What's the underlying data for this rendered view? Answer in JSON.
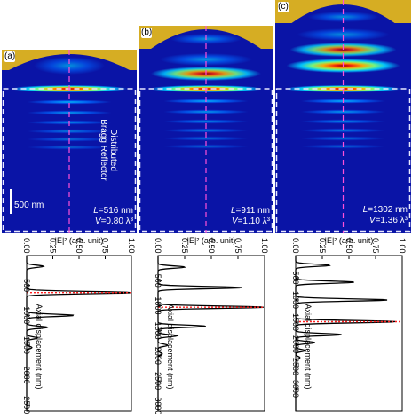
{
  "panels": [
    {
      "label": "(a)",
      "L_name": "L",
      "L_text": "=516 nm",
      "V_name": "V",
      "V_text": "=0.80 λ³",
      "dbr_line1": "Distributed",
      "dbr_line2": "Bragg Reflector",
      "scalebar_label": "500 nm",
      "colors": {
        "metal": "#d6ad23",
        "background": "#0a14a6",
        "dashed_box": "#e8e8ff",
        "axis_dash": "#ff4fd8"
      }
    },
    {
      "label": "(b)",
      "L_name": "L",
      "L_text": "=911 nm",
      "V_name": "V",
      "V_text": "=1.10 λ³"
    },
    {
      "label": "(c)",
      "L_name": "L",
      "L_text": "=1302 nm",
      "V_name": "V",
      "V_text": "=1.36 λ³"
    }
  ],
  "chart_data": [
    {
      "type": "line",
      "panel": "a",
      "ylabel": "|E|² (arb. unit)",
      "xlabel": "Axial displacement (nm)",
      "value_axis": {
        "range": [
          0,
          1.0
        ],
        "ticks": [
          "0.00",
          "0.25",
          "0.50",
          "0.75",
          "1.00"
        ]
      },
      "displacement_axis": {
        "range": [
          0,
          2600
        ],
        "ticks": [
          "500",
          "1000",
          "1500",
          "2000",
          "2500"
        ]
      },
      "marker_displacement": 620,
      "series": [
        {
          "peaks": [
            [
              180,
              0.16
            ],
            [
              620,
              1.0
            ],
            [
              1000,
              0.45
            ],
            [
              1200,
              0.2
            ],
            [
              1380,
              0.1
            ],
            [
              1540,
              0.05
            ]
          ]
        }
      ]
    },
    {
      "type": "line",
      "panel": "b",
      "ylabel": "|E|² (arb. unit)",
      "xlabel": "Axial displacement (nm)",
      "value_axis": {
        "range": [
          0,
          1.0
        ],
        "ticks": [
          "0.00",
          "0.25",
          "0.50",
          "0.75",
          "1.00"
        ]
      },
      "displacement_axis": {
        "range": [
          0,
          3100
        ],
        "ticks": [
          "500",
          "1000",
          "1500",
          "2000",
          "2500",
          "3000"
        ]
      },
      "marker_displacement": 1030,
      "series": [
        {
          "peaks": [
            [
              230,
              0.25
            ],
            [
              640,
              0.79
            ],
            [
              1030,
              1.0
            ],
            [
              1410,
              0.45
            ],
            [
              1600,
              0.18
            ],
            [
              1790,
              0.09
            ],
            [
              1960,
              0.04
            ]
          ]
        }
      ]
    },
    {
      "type": "line",
      "panel": "c",
      "ylabel": "|E|² (arb. unit)",
      "xlabel": "Axial displacement (nm)",
      "value_axis": {
        "range": [
          0,
          1.0
        ],
        "ticks": [
          "0.00",
          "0.25",
          "0.50",
          "0.75",
          "1.00"
        ]
      },
      "displacement_axis": {
        "range": [
          0,
          3500
        ],
        "ticks": [
          "500",
          "1000",
          "1500",
          "2000",
          "2500",
          "3000"
        ]
      },
      "marker_displacement": 1490,
      "series": [
        {
          "peaks": [
            [
              220,
              0.32
            ],
            [
              600,
              0.55
            ],
            [
              1000,
              0.86
            ],
            [
              1490,
              0.94
            ],
            [
              1780,
              0.43
            ],
            [
              1960,
              0.18
            ],
            [
              2140,
              0.09
            ],
            [
              2300,
              0.04
            ]
          ]
        }
      ]
    }
  ]
}
